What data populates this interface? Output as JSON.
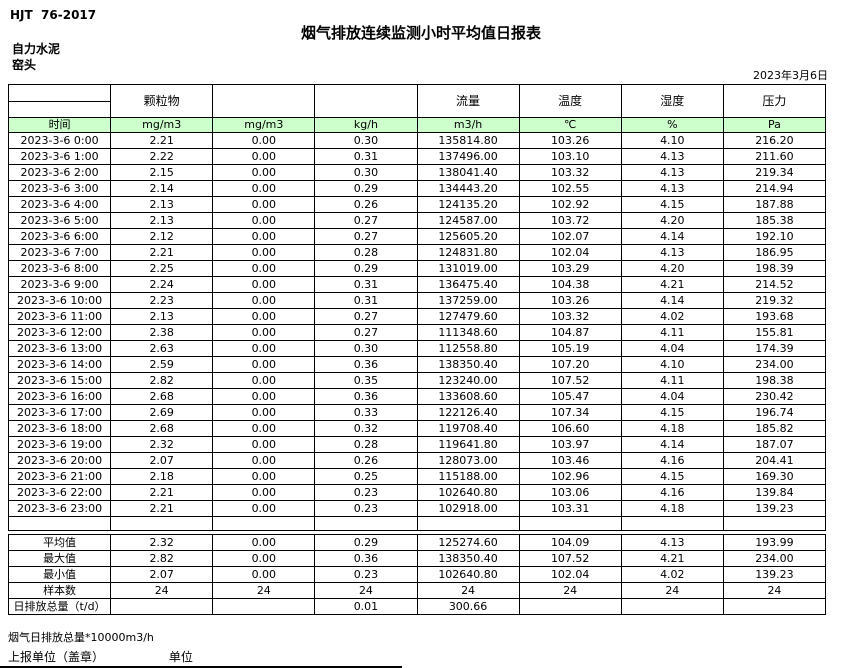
{
  "header": {
    "standard": "HJT  76-2017",
    "title": "烟气排放连续监测小时平均值日报表",
    "company": "自力水泥",
    "location": "窑头",
    "date": "2023年3月6日"
  },
  "table": {
    "group_headers": {
      "col2": "颗粒物",
      "col5": "流量",
      "col6": "温度",
      "col7": "湿度",
      "col8": "压力"
    },
    "unit_row": [
      "时间",
      "mg/m3",
      "mg/m3",
      "kg/h",
      "m3/h",
      "℃",
      "%",
      "Pa"
    ],
    "rows": [
      [
        "2023-3-6 0:00",
        "2.21",
        "0.00",
        "0.30",
        "135814.80",
        "103.26",
        "4.10",
        "216.20"
      ],
      [
        "2023-3-6 1:00",
        "2.22",
        "0.00",
        "0.31",
        "137496.00",
        "103.10",
        "4.13",
        "211.60"
      ],
      [
        "2023-3-6 2:00",
        "2.15",
        "0.00",
        "0.30",
        "138041.40",
        "103.32",
        "4.13",
        "219.34"
      ],
      [
        "2023-3-6 3:00",
        "2.14",
        "0.00",
        "0.29",
        "134443.20",
        "102.55",
        "4.13",
        "214.94"
      ],
      [
        "2023-3-6 4:00",
        "2.13",
        "0.00",
        "0.26",
        "124135.20",
        "102.92",
        "4.15",
        "187.88"
      ],
      [
        "2023-3-6 5:00",
        "2.13",
        "0.00",
        "0.27",
        "124587.00",
        "103.72",
        "4.20",
        "185.38"
      ],
      [
        "2023-3-6 6:00",
        "2.12",
        "0.00",
        "0.27",
        "125605.20",
        "102.07",
        "4.14",
        "192.10"
      ],
      [
        "2023-3-6 7:00",
        "2.21",
        "0.00",
        "0.28",
        "124831.80",
        "102.04",
        "4.13",
        "186.95"
      ],
      [
        "2023-3-6 8:00",
        "2.25",
        "0.00",
        "0.29",
        "131019.00",
        "103.29",
        "4.20",
        "198.39"
      ],
      [
        "2023-3-6 9:00",
        "2.24",
        "0.00",
        "0.31",
        "136475.40",
        "104.38",
        "4.21",
        "214.52"
      ],
      [
        "2023-3-6 10:00",
        "2.23",
        "0.00",
        "0.31",
        "137259.00",
        "103.26",
        "4.14",
        "219.32"
      ],
      [
        "2023-3-6 11:00",
        "2.13",
        "0.00",
        "0.27",
        "127479.60",
        "103.32",
        "4.02",
        "193.68"
      ],
      [
        "2023-3-6 12:00",
        "2.38",
        "0.00",
        "0.27",
        "111348.60",
        "104.87",
        "4.11",
        "155.81"
      ],
      [
        "2023-3-6 13:00",
        "2.63",
        "0.00",
        "0.30",
        "112558.80",
        "105.19",
        "4.04",
        "174.39"
      ],
      [
        "2023-3-6 14:00",
        "2.59",
        "0.00",
        "0.36",
        "138350.40",
        "107.20",
        "4.10",
        "234.00"
      ],
      [
        "2023-3-6 15:00",
        "2.82",
        "0.00",
        "0.35",
        "123240.00",
        "107.52",
        "4.11",
        "198.38"
      ],
      [
        "2023-3-6 16:00",
        "2.68",
        "0.00",
        "0.36",
        "133608.60",
        "105.47",
        "4.04",
        "230.42"
      ],
      [
        "2023-3-6 17:00",
        "2.69",
        "0.00",
        "0.33",
        "122126.40",
        "107.34",
        "4.15",
        "196.74"
      ],
      [
        "2023-3-6 18:00",
        "2.68",
        "0.00",
        "0.32",
        "119708.40",
        "106.60",
        "4.18",
        "185.82"
      ],
      [
        "2023-3-6 19:00",
        "2.32",
        "0.00",
        "0.28",
        "119641.80",
        "103.97",
        "4.14",
        "187.07"
      ],
      [
        "2023-3-6 20:00",
        "2.07",
        "0.00",
        "0.26",
        "128073.00",
        "103.46",
        "4.16",
        "204.41"
      ],
      [
        "2023-3-6 21:00",
        "2.18",
        "0.00",
        "0.25",
        "115188.00",
        "102.96",
        "4.15",
        "169.30"
      ],
      [
        "2023-3-6 22:00",
        "2.21",
        "0.00",
        "0.23",
        "102640.80",
        "103.06",
        "4.16",
        "139.84"
      ],
      [
        "2023-3-6 23:00",
        "2.21",
        "0.00",
        "0.23",
        "102918.00",
        "103.31",
        "4.18",
        "139.23"
      ]
    ],
    "summary_rows": [
      [
        "平均值",
        "2.32",
        "0.00",
        "0.29",
        "125274.60",
        "104.09",
        "4.13",
        "193.99"
      ],
      [
        "最大值",
        "2.82",
        "0.00",
        "0.36",
        "138350.40",
        "107.52",
        "4.21",
        "234.00"
      ],
      [
        "最小值",
        "2.07",
        "0.00",
        "0.23",
        "102640.80",
        "102.04",
        "4.02",
        "139.23"
      ],
      [
        "样本数",
        "24",
        "24",
        "24",
        "24",
        "24",
        "24",
        "24"
      ],
      [
        "日排放总量（t/d）",
        "",
        "",
        "0.01",
        "300.66",
        "",
        "",
        ""
      ]
    ]
  },
  "footer": {
    "note": "烟气日排放总量*10000m3/h",
    "report_unit_label": "上报单位（盖章）",
    "unit_label": "单位"
  },
  "colors": {
    "header_green": "#ccffcc",
    "grid_line": "#000000"
  }
}
